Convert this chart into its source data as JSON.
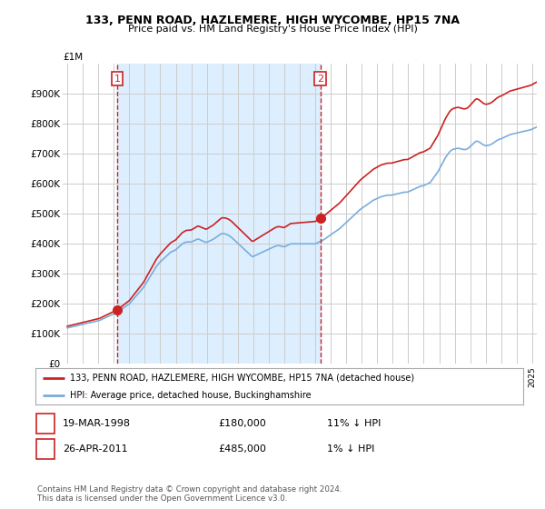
{
  "title_line1": "133, PENN ROAD, HAZLEMERE, HIGH WYCOMBE, HP15 7NA",
  "title_line2": "Price paid vs. HM Land Registry's House Price Index (HPI)",
  "ylabel_top": "£1M",
  "yticks": [
    0,
    100000,
    200000,
    300000,
    400000,
    500000,
    600000,
    700000,
    800000,
    900000
  ],
  "ytick_labels": [
    "£0",
    "£100K",
    "£200K",
    "£300K",
    "£400K",
    "£500K",
    "£600K",
    "£700K",
    "£800K",
    "£900K"
  ],
  "ylim": [
    0,
    1000000
  ],
  "xlim_start": 1994.7,
  "xlim_end": 2025.3,
  "hpi_color": "#7aaddc",
  "price_color": "#cc2222",
  "sale1_x": 1998.21,
  "sale1_y": 180000,
  "sale1_label": "1",
  "sale2_x": 2011.32,
  "sale2_y": 485000,
  "sale2_label": "2",
  "vline_color": "#cc2222",
  "shade_color": "#ddeeff",
  "legend_line1": "133, PENN ROAD, HAZLEMERE, HIGH WYCOMBE, HP15 7NA (detached house)",
  "legend_line2": "HPI: Average price, detached house, Buckinghamshire",
  "table_row1": [
    "1",
    "19-MAR-1998",
    "£180,000",
    "11% ↓ HPI"
  ],
  "table_row2": [
    "2",
    "26-APR-2011",
    "£485,000",
    "1% ↓ HPI"
  ],
  "footnote": "Contains HM Land Registry data © Crown copyright and database right 2024.\nThis data is licensed under the Open Government Licence v3.0.",
  "background_color": "#ffffff",
  "plot_bg_color": "#ffffff",
  "grid_color": "#cccccc",
  "hpi_monthly": [
    120000,
    121000,
    122000,
    123000,
    124000,
    125000,
    126000,
    127000,
    128000,
    129000,
    130000,
    131000,
    132000,
    133000,
    134000,
    135000,
    136000,
    137000,
    138000,
    139000,
    140000,
    141000,
    142000,
    143000,
    144000,
    145000,
    147000,
    149000,
    151000,
    153000,
    155000,
    157000,
    159000,
    161000,
    163000,
    165000,
    167000,
    169000,
    171000,
    173000,
    176000,
    179000,
    182000,
    185000,
    188000,
    191000,
    194000,
    197000,
    200000,
    205000,
    210000,
    215000,
    220000,
    225000,
    230000,
    235000,
    240000,
    245000,
    250000,
    255000,
    262000,
    269000,
    276000,
    283000,
    290000,
    297000,
    304000,
    311000,
    318000,
    325000,
    330000,
    335000,
    340000,
    344000,
    348000,
    352000,
    356000,
    360000,
    364000,
    368000,
    372000,
    374000,
    376000,
    378000,
    380000,
    384000,
    388000,
    392000,
    396000,
    400000,
    402000,
    404000,
    406000,
    406000,
    406000,
    406000,
    406000,
    408000,
    410000,
    412000,
    414000,
    416000,
    415000,
    413000,
    411000,
    409000,
    407000,
    405000,
    405000,
    407000,
    409000,
    411000,
    413000,
    415000,
    418000,
    421000,
    424000,
    427000,
    430000,
    433000,
    434000,
    434000,
    433000,
    432000,
    430000,
    428000,
    425000,
    422000,
    418000,
    414000,
    410000,
    406000,
    402000,
    398000,
    394000,
    390000,
    386000,
    382000,
    378000,
    374000,
    370000,
    366000,
    362000,
    358000,
    358000,
    360000,
    362000,
    364000,
    366000,
    368000,
    370000,
    372000,
    374000,
    376000,
    378000,
    380000,
    382000,
    384000,
    386000,
    388000,
    390000,
    392000,
    393000,
    394000,
    394000,
    393000,
    392000,
    391000,
    390000,
    392000,
    394000,
    396000,
    398000,
    400000,
    400000,
    400000,
    400000,
    400000,
    400000,
    400000,
    400000,
    400000,
    400000,
    400000,
    400000,
    400000,
    400000,
    400000,
    400000,
    400000,
    400000,
    400000,
    400000,
    402000,
    404000,
    406000,
    408000,
    410000,
    412000,
    415000,
    418000,
    421000,
    424000,
    427000,
    430000,
    433000,
    436000,
    439000,
    442000,
    445000,
    448000,
    451000,
    455000,
    459000,
    463000,
    467000,
    471000,
    475000,
    479000,
    483000,
    487000,
    491000,
    495000,
    499000,
    503000,
    507000,
    511000,
    515000,
    518000,
    521000,
    524000,
    527000,
    530000,
    533000,
    536000,
    539000,
    542000,
    545000,
    547000,
    549000,
    551000,
    553000,
    555000,
    557000,
    558000,
    559000,
    560000,
    561000,
    562000,
    562000,
    562000,
    562000,
    563000,
    564000,
    565000,
    566000,
    567000,
    568000,
    569000,
    570000,
    571000,
    572000,
    572000,
    572000,
    573000,
    575000,
    577000,
    579000,
    581000,
    583000,
    585000,
    587000,
    589000,
    591000,
    592000,
    593000,
    594000,
    596000,
    598000,
    600000,
    602000,
    604000,
    610000,
    616000,
    622000,
    628000,
    634000,
    640000,
    648000,
    656000,
    664000,
    672000,
    680000,
    688000,
    694000,
    700000,
    706000,
    710000,
    713000,
    715000,
    716000,
    717000,
    718000,
    718000,
    717000,
    716000,
    715000,
    714000,
    714000,
    715000,
    717000,
    720000,
    724000,
    728000,
    732000,
    736000,
    740000,
    742000,
    741000,
    739000,
    736000,
    733000,
    730000,
    728000,
    727000,
    727000,
    728000,
    729000,
    731000,
    733000,
    736000,
    739000,
    742000,
    745000,
    747000,
    749000,
    750000,
    752000,
    754000,
    756000,
    758000,
    760000,
    762000,
    764000,
    765000,
    766000,
    767000,
    768000,
    769000,
    770000,
    771000,
    772000,
    773000,
    774000,
    775000,
    776000,
    777000,
    778000,
    779000,
    780000,
    782000,
    784000,
    786000,
    788000,
    790000,
    792000
  ]
}
